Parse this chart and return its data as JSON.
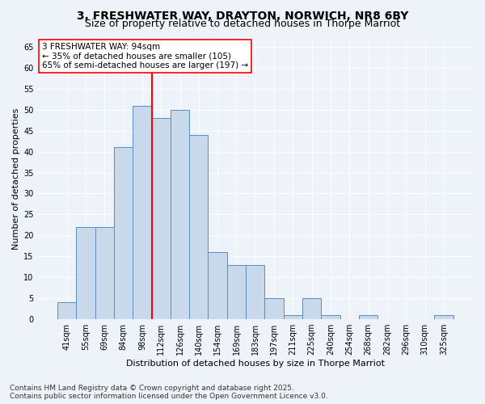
{
  "title_line1": "3, FRESHWATER WAY, DRAYTON, NORWICH, NR8 6BY",
  "title_line2": "Size of property relative to detached houses in Thorpe Marriot",
  "xlabel": "Distribution of detached houses by size in Thorpe Marriot",
  "ylabel": "Number of detached properties",
  "bar_labels": [
    "41sqm",
    "55sqm",
    "69sqm",
    "84sqm",
    "98sqm",
    "112sqm",
    "126sqm",
    "140sqm",
    "154sqm",
    "169sqm",
    "183sqm",
    "197sqm",
    "211sqm",
    "225sqm",
    "240sqm",
    "254sqm",
    "268sqm",
    "282sqm",
    "296sqm",
    "310sqm",
    "325sqm"
  ],
  "bar_values": [
    4,
    22,
    22,
    41,
    51,
    48,
    50,
    44,
    16,
    13,
    13,
    5,
    1,
    5,
    1,
    0,
    1,
    0,
    0,
    0,
    1
  ],
  "bar_color": "#c9d9ec",
  "bar_edge_color": "#5b8bc0",
  "vline_color": "red",
  "annotation_text": "3 FRESHWATER WAY: 94sqm\n← 35% of detached houses are smaller (105)\n65% of semi-detached houses are larger (197) →",
  "background_color": "#eef2f9",
  "grid_color": "#ffffff",
  "yticks": [
    0,
    5,
    10,
    15,
    20,
    25,
    30,
    35,
    40,
    45,
    50,
    55,
    60,
    65
  ],
  "ylim": [
    0,
    67
  ],
  "footer_text": "Contains HM Land Registry data © Crown copyright and database right 2025.\nContains public sector information licensed under the Open Government Licence v3.0.",
  "title_fontsize": 10,
  "subtitle_fontsize": 9,
  "axis_label_fontsize": 8,
  "tick_fontsize": 7,
  "annotation_fontsize": 7.5,
  "footer_fontsize": 6.5,
  "vline_bar_index": 4
}
